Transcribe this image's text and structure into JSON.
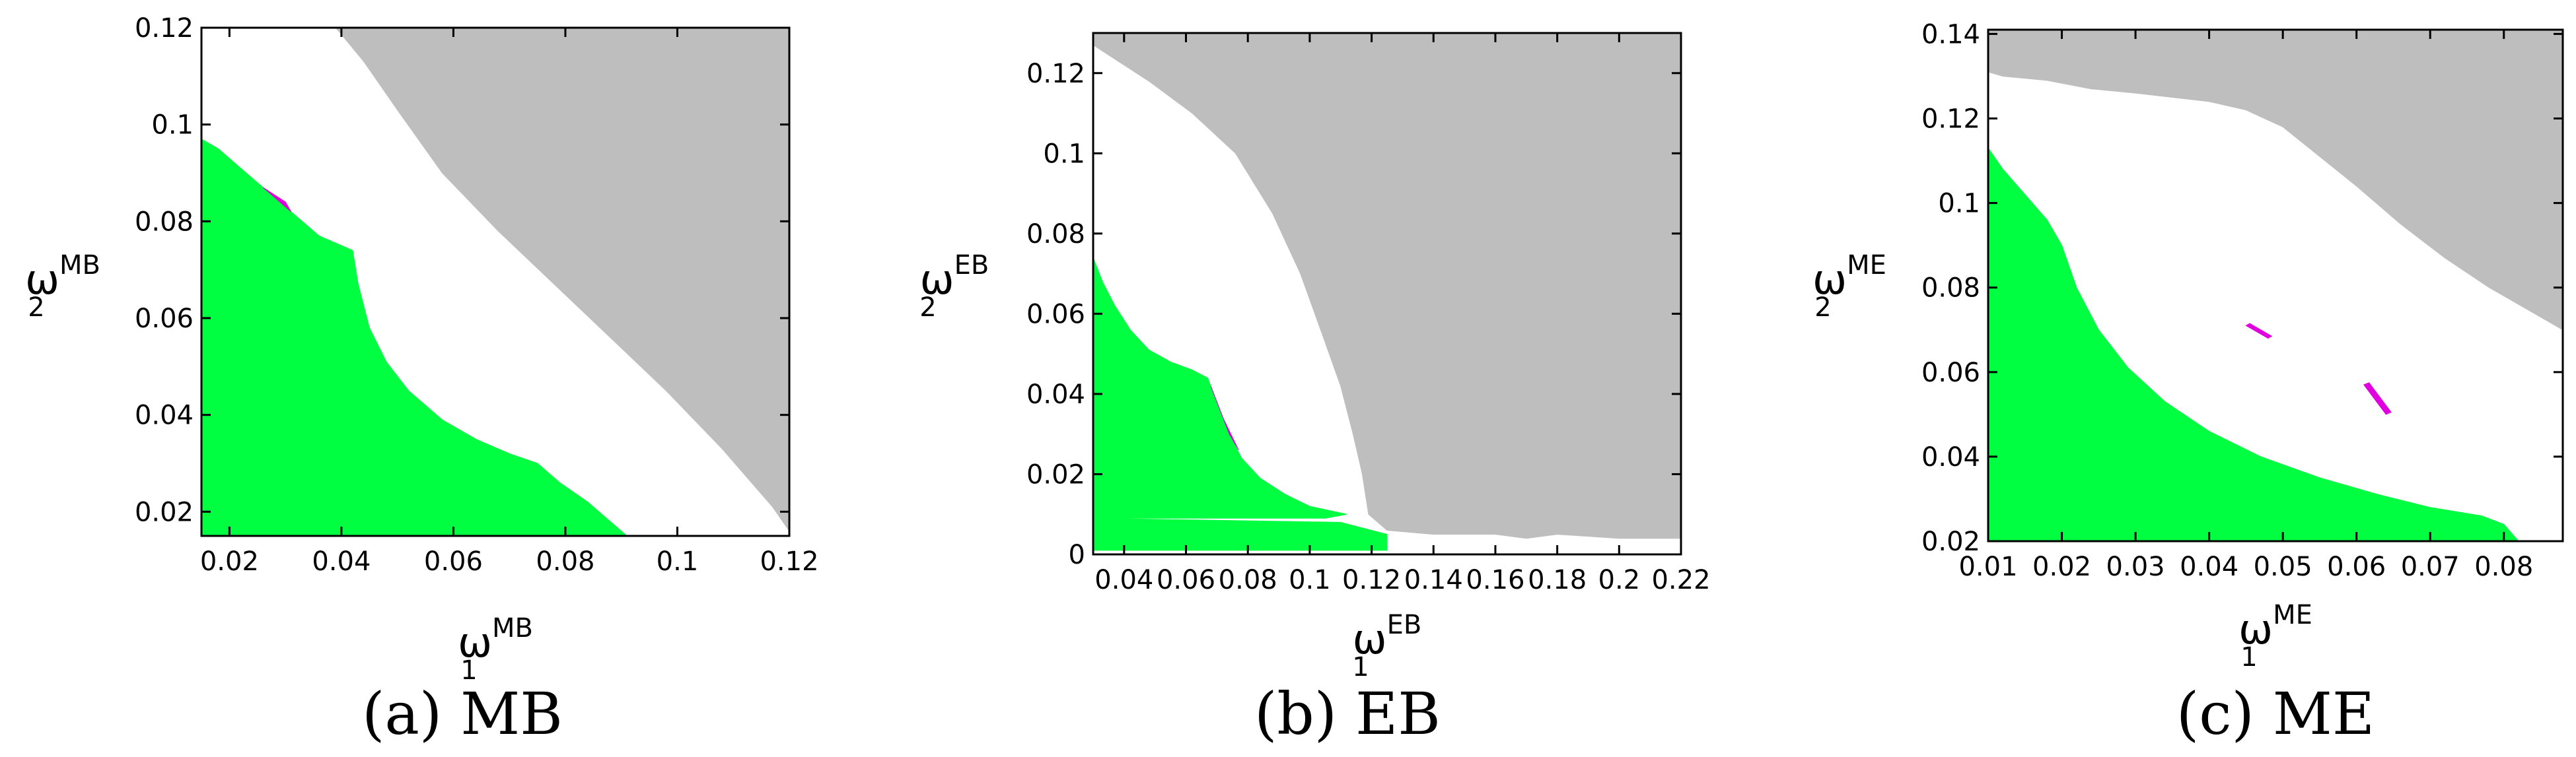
{
  "colors": {
    "feasible": "#00ff40",
    "infeasible": "#bebebe",
    "boundary": "#e000e0",
    "background": "#ffffff"
  },
  "chart_data": [
    {
      "type": "area",
      "caption": "(a)  MB",
      "xlabel": {
        "symbol": "ω",
        "sub": "1",
        "sup": "MB"
      },
      "ylabel": {
        "symbol": "ω",
        "sub": "2",
        "sup": "MB"
      },
      "xlim": [
        0.015,
        0.12
      ],
      "ylim": [
        0.015,
        0.12
      ],
      "xticks": [
        0.02,
        0.04,
        0.06,
        0.08,
        0.1,
        0.12
      ],
      "xtick_labels": [
        "0.02",
        "0.04",
        "0.06",
        "0.08",
        "0.1",
        "0.12"
      ],
      "yticks": [
        0.02,
        0.04,
        0.06,
        0.08,
        0.1,
        0.12
      ],
      "ytick_labels": [
        "0.02",
        "0.04",
        "0.06",
        "0.08",
        "0.1",
        "0.12"
      ],
      "regions": [
        {
          "name": "",
          "color": "#bebebe",
          "points": [
            [
              0.039,
              0.12
            ],
            [
              0.12,
              0.12
            ],
            [
              0.12,
              0.016
            ],
            [
              0.117,
              0.021
            ],
            [
              0.108,
              0.033
            ],
            [
              0.098,
              0.045
            ],
            [
              0.088,
              0.056
            ],
            [
              0.078,
              0.067
            ],
            [
              0.068,
              0.078
            ],
            [
              0.058,
              0.09
            ],
            [
              0.05,
              0.103
            ],
            [
              0.044,
              0.113
            ]
          ]
        },
        {
          "name": "",
          "color": "#00ff40",
          "points": [
            [
              0.015,
              0.015
            ],
            [
              0.015,
              0.097
            ],
            [
              0.018,
              0.095
            ],
            [
              0.022,
              0.091
            ],
            [
              0.026,
              0.087
            ],
            [
              0.031,
              0.082
            ],
            [
              0.036,
              0.077
            ],
            [
              0.04,
              0.075
            ],
            [
              0.042,
              0.074
            ],
            [
              0.043,
              0.067
            ],
            [
              0.045,
              0.058
            ],
            [
              0.048,
              0.051
            ],
            [
              0.052,
              0.045
            ],
            [
              0.058,
              0.039
            ],
            [
              0.064,
              0.035
            ],
            [
              0.07,
              0.032
            ],
            [
              0.075,
              0.03
            ],
            [
              0.079,
              0.026
            ],
            [
              0.084,
              0.022
            ],
            [
              0.088,
              0.018
            ],
            [
              0.091,
              0.015
            ]
          ]
        },
        {
          "name": "",
          "color": "#e000e0",
          "points": [
            [
              0.026,
              0.087
            ],
            [
              0.028,
              0.085
            ],
            [
              0.031,
              0.082
            ],
            [
              0.03,
              0.084
            ]
          ]
        }
      ]
    },
    {
      "type": "area",
      "caption": "(b)  EB",
      "xlabel": {
        "symbol": "ω",
        "sub": "1",
        "sup": "EB"
      },
      "ylabel": {
        "symbol": "ω",
        "sub": "2",
        "sup": "EB"
      },
      "xlim": [
        0.03,
        0.22
      ],
      "ylim": [
        0,
        0.13
      ],
      "xticks": [
        0.04,
        0.06,
        0.08,
        0.1,
        0.12,
        0.14,
        0.16,
        0.18,
        0.2,
        0.22
      ],
      "xtick_labels": [
        "0.04",
        "0.06",
        "0.08",
        "0.1",
        "0.12",
        "0.14",
        "0.16",
        "0.18",
        "0.2",
        "0.22"
      ],
      "yticks": [
        0,
        0.02,
        0.04,
        0.06,
        0.08,
        0.1,
        0.12
      ],
      "ytick_labels": [
        "0",
        "0.02",
        "0.04",
        "0.06",
        "0.08",
        "0.1",
        "0.12"
      ],
      "regions": [
        {
          "name": "",
          "color": "#bebebe",
          "points": [
            [
              0.03,
              0.13
            ],
            [
              0.22,
              0.13
            ],
            [
              0.22,
              0.004
            ],
            [
              0.2,
              0.004
            ],
            [
              0.18,
              0.005
            ],
            [
              0.17,
              0.004
            ],
            [
              0.16,
              0.005
            ],
            [
              0.14,
              0.005
            ],
            [
              0.125,
              0.006
            ],
            [
              0.119,
              0.01
            ],
            [
              0.117,
              0.02
            ],
            [
              0.114,
              0.03
            ],
            [
              0.11,
              0.042
            ],
            [
              0.104,
              0.055
            ],
            [
              0.097,
              0.07
            ],
            [
              0.088,
              0.085
            ],
            [
              0.076,
              0.1
            ],
            [
              0.062,
              0.11
            ],
            [
              0.048,
              0.118
            ],
            [
              0.036,
              0.124
            ],
            [
              0.03,
              0.127
            ]
          ]
        },
        {
          "name": "",
          "color": "#00ff40",
          "points": [
            [
              0.03,
              0.009
            ],
            [
              0.03,
              0.074
            ],
            [
              0.033,
              0.068
            ],
            [
              0.037,
              0.062
            ],
            [
              0.042,
              0.056
            ],
            [
              0.048,
              0.051
            ],
            [
              0.055,
              0.048
            ],
            [
              0.062,
              0.046
            ],
            [
              0.067,
              0.044
            ],
            [
              0.07,
              0.038
            ],
            [
              0.074,
              0.03
            ],
            [
              0.078,
              0.024
            ],
            [
              0.084,
              0.019
            ],
            [
              0.092,
              0.015
            ],
            [
              0.1,
              0.012
            ],
            [
              0.112,
              0.01
            ],
            [
              0.105,
              0.009
            ]
          ]
        },
        {
          "name": "",
          "color": "#00ff40",
          "points": [
            [
              0.03,
              0.001
            ],
            [
              0.03,
              0.009
            ],
            [
              0.11,
              0.008
            ],
            [
              0.125,
              0.005
            ],
            [
              0.125,
              0.001
            ]
          ]
        },
        {
          "name": "",
          "color": "#e000e0",
          "points": [
            [
              0.068,
              0.042
            ],
            [
              0.072,
              0.034
            ],
            [
              0.077,
              0.026
            ],
            [
              0.074,
              0.03
            ]
          ]
        }
      ]
    },
    {
      "type": "area",
      "caption": "(c)  ME",
      "xlabel": {
        "symbol": "ω",
        "sub": "1",
        "sup": "ME"
      },
      "ylabel": {
        "symbol": "ω",
        "sub": "2",
        "sup": "ME"
      },
      "xlim": [
        0.01,
        0.088
      ],
      "ylim": [
        0.02,
        0.141
      ],
      "xticks": [
        0.01,
        0.02,
        0.03,
        0.04,
        0.05,
        0.06,
        0.07,
        0.08
      ],
      "xtick_labels": [
        "0.01",
        "0.02",
        "0.03",
        "0.04",
        "0.05",
        "0.06",
        "0.07",
        "0.08"
      ],
      "yticks": [
        0.02,
        0.04,
        0.06,
        0.08,
        0.1,
        0.12,
        0.14
      ],
      "ytick_labels": [
        "0.02",
        "0.04",
        "0.06",
        "0.08",
        "0.1",
        "0.12",
        "0.14"
      ],
      "regions": [
        {
          "name": "",
          "color": "#bebebe",
          "points": [
            [
              0.01,
              0.141
            ],
            [
              0.088,
              0.141
            ],
            [
              0.088,
              0.07
            ],
            [
              0.084,
              0.074
            ],
            [
              0.078,
              0.08
            ],
            [
              0.072,
              0.087
            ],
            [
              0.066,
              0.095
            ],
            [
              0.06,
              0.104
            ],
            [
              0.055,
              0.111
            ],
            [
              0.05,
              0.118
            ],
            [
              0.045,
              0.122
            ],
            [
              0.04,
              0.124
            ],
            [
              0.035,
              0.125
            ],
            [
              0.03,
              0.126
            ],
            [
              0.024,
              0.127
            ],
            [
              0.018,
              0.129
            ],
            [
              0.012,
              0.13
            ],
            [
              0.01,
              0.131
            ]
          ]
        },
        {
          "name": "",
          "color": "#00ff40",
          "points": [
            [
              0.01,
              0.02
            ],
            [
              0.01,
              0.113
            ],
            [
              0.012,
              0.108
            ],
            [
              0.015,
              0.102
            ],
            [
              0.018,
              0.096
            ],
            [
              0.02,
              0.09
            ],
            [
              0.022,
              0.08
            ],
            [
              0.025,
              0.07
            ],
            [
              0.029,
              0.061
            ],
            [
              0.034,
              0.053
            ],
            [
              0.04,
              0.046
            ],
            [
              0.047,
              0.04
            ],
            [
              0.055,
              0.035
            ],
            [
              0.063,
              0.031
            ],
            [
              0.07,
              0.028
            ],
            [
              0.077,
              0.026
            ],
            [
              0.08,
              0.024
            ],
            [
              0.081,
              0.022
            ],
            [
              0.082,
              0.02
            ]
          ]
        },
        {
          "name": "",
          "color": "#e000e0",
          "points": [
            [
              0.045,
              0.071
            ],
            [
              0.048,
              0.068
            ],
            [
              0.0485,
              0.0685
            ],
            [
              0.0455,
              0.0715
            ]
          ]
        },
        {
          "name": "",
          "color": "#e000e0",
          "points": [
            [
              0.061,
              0.057
            ],
            [
              0.064,
              0.05
            ],
            [
              0.0647,
              0.0505
            ],
            [
              0.0617,
              0.0575
            ]
          ]
        }
      ]
    }
  ]
}
